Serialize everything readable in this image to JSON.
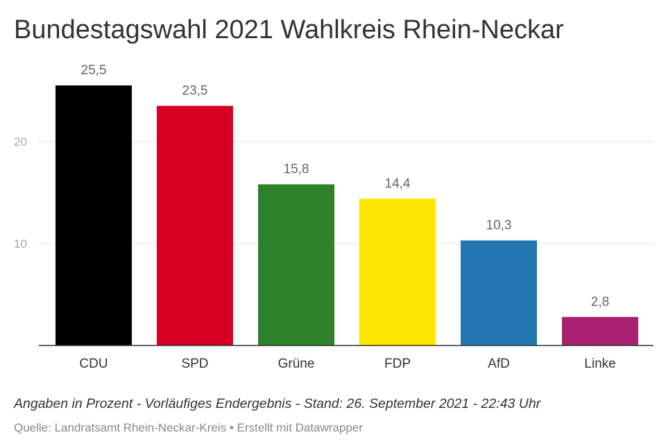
{
  "chart_data": {
    "type": "bar",
    "title": "Bundestagswahl 2021 Wahlkreis Rhein-Neckar",
    "categories": [
      "CDU",
      "SPD",
      "Grüne",
      "FDP",
      "AfD",
      "Linke"
    ],
    "values": [
      25.5,
      23.5,
      15.8,
      14.4,
      10.3,
      2.8
    ],
    "value_labels": [
      "25,5",
      "23,5",
      "15,8",
      "14,4",
      "10,3",
      "2,8"
    ],
    "colors": [
      "#000000",
      "#d70022",
      "#2e8128",
      "#ffe500",
      "#2277b3",
      "#aa2070"
    ],
    "yticks": [
      10,
      20
    ],
    "ylim": [
      0,
      26
    ],
    "grid": true,
    "note": "Angaben in Prozent - Vorläufiges Endergebnis - Stand: 26. September 2021 - 22:43 Uhr",
    "source": "Quelle: Landratsamt Rhein-Neckar-Kreis • Erstellt mit Datawrapper"
  }
}
